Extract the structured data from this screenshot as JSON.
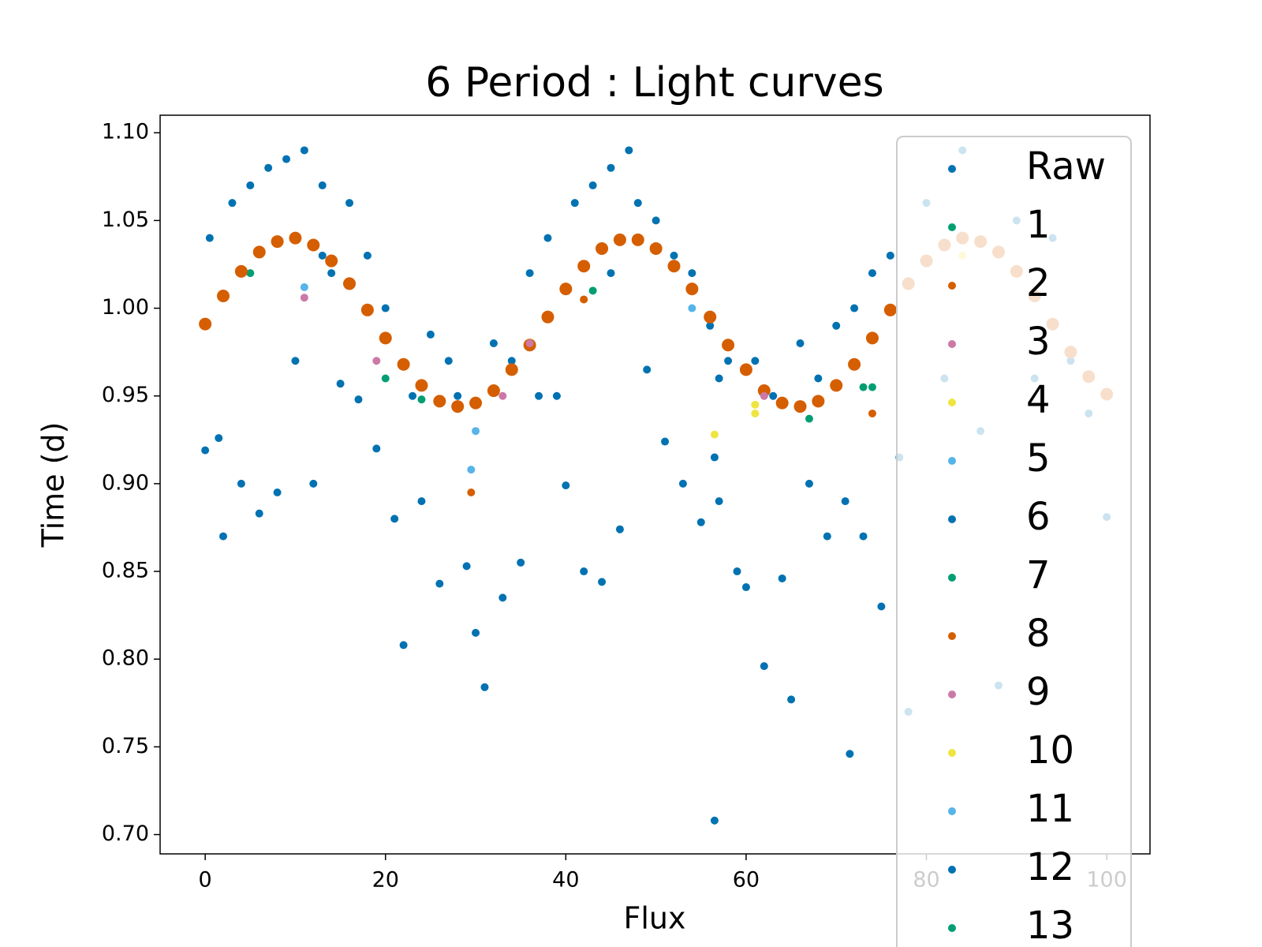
{
  "chart_data": {
    "type": "scatter",
    "title": "6 Period : Light curves",
    "x_label": "Flux",
    "y_label": "Time (d)",
    "xlim": [
      -5,
      104.8
    ],
    "ylim": [
      0.689,
      1.11
    ],
    "xticks": [
      0,
      20,
      40,
      60,
      80,
      100
    ],
    "yticks": [
      {
        "value": 0.7,
        "label": "0.70"
      },
      0.75,
      {
        "value": 0.8,
        "label": "0.80"
      },
      0.85,
      {
        "value": 0.9,
        "label": "0.90"
      },
      0.95,
      {
        "value": 1.0,
        "label": "1.00"
      },
      1.05,
      {
        "value": 1.1,
        "label": "1.10"
      }
    ],
    "legend": "upper right",
    "series": [
      {
        "name": "Raw",
        "color": "#0072b2",
        "x": [
          0,
          0.5,
          1.5,
          2,
          3,
          4,
          5,
          6,
          7,
          8,
          9,
          10,
          11,
          12,
          13,
          14,
          15,
          16,
          17,
          18,
          19,
          20,
          21,
          22,
          23,
          24,
          25,
          26,
          27,
          28,
          29,
          30,
          31,
          32,
          33,
          34,
          35,
          36,
          37,
          38,
          39,
          40,
          41,
          42,
          43,
          44,
          45,
          46,
          47,
          48,
          49,
          50,
          51,
          52,
          53,
          54,
          55,
          56,
          56.5,
          57,
          58,
          59,
          60,
          61,
          62,
          63,
          64,
          65,
          66,
          67,
          68,
          69,
          70,
          71,
          71.5,
          72,
          73,
          74,
          75,
          76,
          77,
          78,
          80,
          82,
          84,
          86,
          88,
          90,
          92,
          94,
          96,
          98,
          100
        ],
        "values": [
          0.919,
          1.04,
          0.926,
          0.87,
          1.06,
          0.9,
          1.07,
          0.883,
          1.08,
          0.895,
          1.085,
          0.97,
          1.09,
          0.9,
          1.07,
          1.02,
          0.957,
          1.06,
          0.948,
          1.03,
          0.92,
          1.0,
          0.88,
          0.808,
          0.95,
          0.89,
          0.985,
          0.843,
          0.97,
          0.95,
          0.853,
          0.815,
          0.784,
          0.98,
          0.835,
          0.97,
          0.855,
          1.02,
          0.95,
          1.04,
          0.95,
          0.899,
          1.06,
          0.85,
          1.07,
          0.844,
          1.08,
          0.874,
          1.09,
          1.06,
          0.965,
          1.05,
          0.924,
          1.03,
          0.9,
          1.02,
          0.878,
          0.99,
          0.708,
          0.89,
          0.97,
          0.85,
          0.841,
          0.97,
          0.796,
          0.95,
          0.846,
          0.777,
          0.98,
          0.9,
          0.96,
          0.87,
          0.99,
          0.89,
          0.746,
          1.0,
          0.87,
          1.02,
          0.83,
          1.03,
          0.915,
          0.77,
          1.06,
          0.96,
          1.09,
          0.93,
          0.785,
          1.05,
          0.96,
          1.04,
          0.97,
          0.94,
          0.881
        ]
      },
      {
        "name": "1",
        "color": "#009e73",
        "x": [
          5,
          24,
          74
        ],
        "values": [
          1.02,
          0.948,
          0.955
        ]
      },
      {
        "name": "2",
        "color": "#d55e00",
        "x": [
          0,
          2,
          4,
          6,
          8,
          10,
          12,
          14,
          16,
          18,
          20,
          22,
          24,
          26,
          28,
          30,
          32,
          34,
          36,
          38,
          40,
          42,
          44,
          46,
          48,
          50,
          52,
          54,
          56,
          58,
          60,
          62,
          64,
          66,
          68,
          70,
          72,
          74,
          76,
          78,
          80,
          82,
          84,
          86,
          88,
          90,
          92,
          94,
          96,
          98,
          100
        ],
        "values": [
          0.991,
          1.007,
          1.021,
          1.032,
          1.038,
          1.04,
          1.036,
          1.027,
          1.014,
          0.999,
          0.983,
          0.968,
          0.956,
          0.947,
          0.944,
          0.946,
          0.953,
          0.965,
          0.979,
          0.995,
          1.011,
          1.024,
          1.034,
          1.039,
          1.039,
          1.034,
          1.024,
          1.011,
          0.995,
          0.979,
          0.965,
          0.953,
          0.946,
          0.944,
          0.947,
          0.956,
          0.968,
          0.983,
          0.999,
          1.014,
          1.027,
          1.036,
          1.04,
          1.038,
          1.032,
          1.021,
          1.007,
          0.991,
          0.975,
          0.961,
          0.951
        ]
      },
      {
        "name": "3",
        "color": "#cc79a7",
        "x": [
          11,
          33,
          62
        ],
        "values": [
          1.006,
          0.95,
          0.95
        ]
      },
      {
        "name": "4",
        "color": "#f0e442",
        "x": [
          56.5,
          61
        ],
        "values": [
          0.928,
          0.94
        ]
      },
      {
        "name": "5",
        "color": "#56b4e9",
        "x": [
          11,
          29.5
        ],
        "values": [
          1.012,
          0.908
        ]
      },
      {
        "name": "6",
        "color": "#0072b2",
        "x": [
          56.5,
          57
        ],
        "values": [
          0.915,
          0.96
        ]
      },
      {
        "name": "7",
        "color": "#009e73",
        "x": [
          43,
          73
        ],
        "values": [
          1.01,
          0.955
        ]
      },
      {
        "name": "8",
        "color": "#d55e00",
        "x": [
          29.5,
          42,
          74
        ],
        "values": [
          0.895,
          1.005,
          0.94
        ]
      },
      {
        "name": "9",
        "color": "#cc79a7",
        "x": [
          19,
          36
        ],
        "values": [
          0.97,
          0.98
        ]
      },
      {
        "name": "10",
        "color": "#f0e442",
        "x": [
          61,
          84
        ],
        "values": [
          0.945,
          1.03
        ]
      },
      {
        "name": "11",
        "color": "#56b4e9",
        "x": [
          30,
          54
        ],
        "values": [
          0.93,
          1.0
        ]
      },
      {
        "name": "12",
        "color": "#0072b2",
        "x": [
          13,
          45
        ],
        "values": [
          1.03,
          1.02
        ]
      },
      {
        "name": "13",
        "color": "#009e73",
        "x": [
          20,
          67
        ],
        "values": [
          0.96,
          0.937
        ]
      }
    ]
  }
}
